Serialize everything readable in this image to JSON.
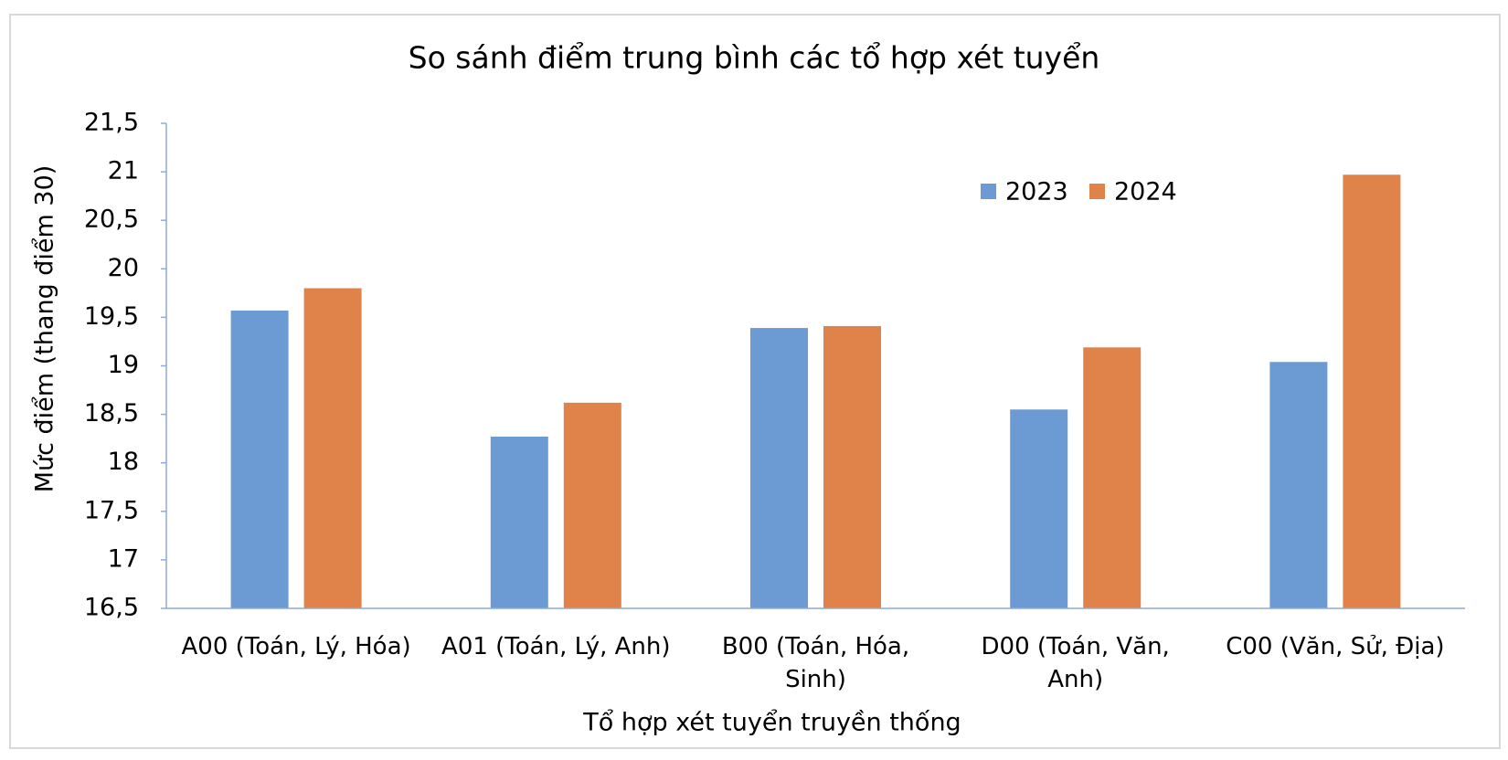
{
  "chart_data": {
    "type": "bar",
    "title": "So sánh điểm trung bình các tổ hợp xét tuyển",
    "x_label": "Tổ hợp xét tuyển truyền thống",
    "y_label": "Mức điểm (thang điểm 30)",
    "categories": [
      "A00 (Toán, Lý, Hóa)",
      "A01 (Toán, Lý, Anh)",
      "B00 (Toán, Hóa, Sinh)",
      "D00 (Toán, Văn, Anh)",
      "C00 (Văn, Sử, Địa)"
    ],
    "series": [
      {
        "name": "2023",
        "color": "#6b9bd2",
        "values": [
          19.57,
          18.27,
          19.39,
          18.55,
          19.04
        ]
      },
      {
        "name": "2024",
        "color": "#e0834a",
        "values": [
          19.8,
          18.62,
          19.41,
          19.19,
          20.97
        ]
      }
    ],
    "ylim": [
      16.5,
      21.5
    ],
    "yticks": [
      {
        "value": 16.5,
        "label": "16,5"
      },
      17,
      {
        "value": 17.5,
        "label": "17,5"
      },
      18,
      {
        "value": 18.5,
        "label": "18,5"
      },
      19,
      {
        "value": 19.5,
        "label": "19,5"
      },
      20,
      {
        "value": 20.5,
        "label": "20,5"
      },
      21,
      {
        "value": 21.5,
        "label": "21,5"
      }
    ],
    "grid": false,
    "legend": "top-right"
  }
}
